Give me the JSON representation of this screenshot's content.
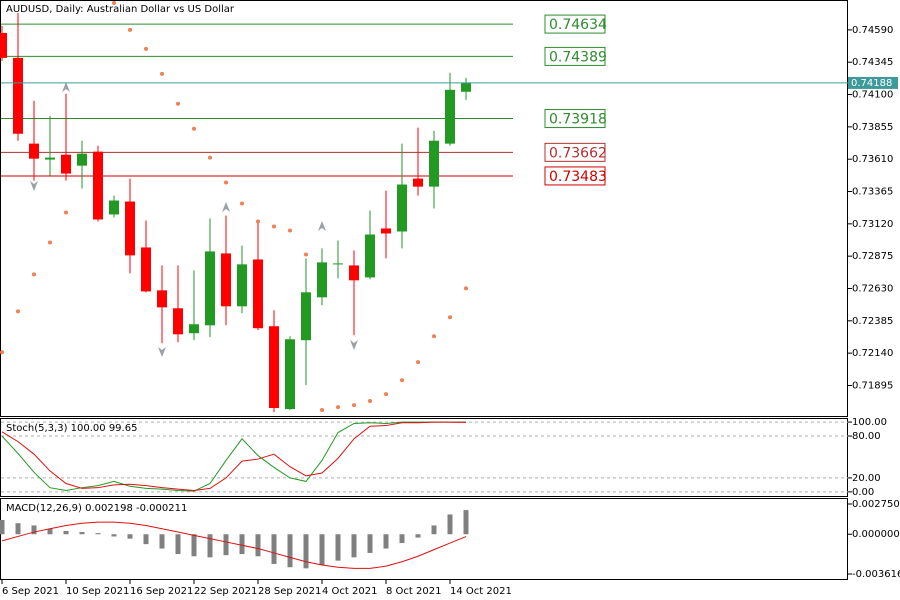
{
  "chart_data": [
    {
      "type": "candlestick",
      "title": "AUDUSD, Daily:  Australian Dollar vs US Dollar",
      "categories": [
        "6 Sep 2021",
        null,
        null,
        null,
        "10 Sep 2021",
        null,
        null,
        null,
        "16 Sep 2021",
        null,
        null,
        null,
        "22 Sep 2021",
        null,
        null,
        null,
        "28 Sep 2021",
        null,
        null,
        null,
        "4 Oct 2021",
        null,
        null,
        null,
        "8 Oct 2021",
        null,
        null,
        null,
        "14 Oct 2021",
        null
      ],
      "open": [
        0.74567,
        0.74378,
        0.73728,
        0.73607,
        0.73644,
        0.73561,
        0.73667,
        0.73191,
        0.73289,
        0.72941,
        0.72616,
        0.7248,
        0.72291,
        0.72351,
        0.72896,
        0.72495,
        0.7285,
        0.72344,
        0.71716,
        0.72238,
        0.72563,
        0.7282,
        0.72805,
        0.72714,
        0.73085,
        0.73062,
        0.73463,
        0.73402,
        0.73728,
        0.74121
      ],
      "high": [
        0.7462,
        0.74718,
        0.74053,
        0.73939,
        0.74106,
        0.7375,
        0.73712,
        0.73334,
        0.73463,
        0.73145,
        0.72805,
        0.72805,
        0.72767,
        0.73161,
        0.73183,
        0.72956,
        0.7313,
        0.72465,
        0.72268,
        0.72858,
        0.72934,
        0.72994,
        0.72919,
        0.73221,
        0.73372,
        0.73728,
        0.73849,
        0.73826,
        0.74265,
        0.74227
      ],
      "low": [
        0.74355,
        0.7375,
        0.73448,
        0.73486,
        0.73448,
        0.73387,
        0.73138,
        0.73168,
        0.72745,
        0.72601,
        0.72215,
        0.72223,
        0.72238,
        0.72261,
        0.72351,
        0.72442,
        0.72314,
        0.71693,
        0.71709,
        0.71898,
        0.72503,
        0.72707,
        0.72276,
        0.72699,
        0.72858,
        0.72934,
        0.73334,
        0.73236,
        0.73712,
        0.7406
      ],
      "close": [
        0.74378,
        0.73803,
        0.73614,
        0.73622,
        0.73501,
        0.73652,
        0.73153,
        0.73297,
        0.72881,
        0.72608,
        0.72487,
        0.72283,
        0.72359,
        0.72911,
        0.72495,
        0.72813,
        0.72329,
        0.71724,
        0.72245,
        0.72601,
        0.72828,
        0.7282,
        0.72692,
        0.73039,
        0.73047,
        0.73418,
        0.73402,
        0.7375,
        0.74136,
        0.74188
      ],
      "sar": [
        0.72147,
        0.72457,
        0.72737,
        0.72979,
        0.73206,
        null,
        null,
        0.74794,
        0.7459,
        0.74446,
        0.74257,
        0.7403,
        0.73841,
        0.73622,
        0.73433,
        0.73274,
        0.73138,
        0.731,
        0.7307,
        0.72888,
        0.71709,
        0.71731,
        0.71746,
        0.71777,
        0.71829,
        0.71935,
        0.72072,
        0.72268,
        0.72412,
        0.72631
      ],
      "levels": [
        0.74634,
        0.74389,
        0.73918,
        0.73662,
        0.73483
      ],
      "level_colors": [
        "#2e8b2e",
        "#2e8b2e",
        "#2e8b2e",
        "#b03030",
        "#cc0000"
      ],
      "up_color": "#229922",
      "down_color": "#ff0000",
      "sar_color": "#f08050",
      "price_line_color": "#3d9a9a",
      "ylim": [
        0.71656,
        0.74809
      ],
      "yticks": [
        {
          "value": 0.7459,
          "label": "0.74590"
        },
        {
          "value": 0.74345,
          "label": "0.74345"
        },
        {
          "value": 0.741,
          "label": "0.74100"
        },
        {
          "value": 0.73855,
          "label": "0.73855"
        },
        {
          "value": 0.7361,
          "label": "0.73610"
        },
        {
          "value": 0.73365,
          "label": "0.73365"
        },
        {
          "value": 0.7312,
          "label": "0.73120"
        },
        {
          "value": 0.72875,
          "label": "0.72875"
        },
        {
          "value": 0.7263,
          "label": "0.72630"
        },
        {
          "value": 0.72385,
          "label": "0.72385"
        },
        {
          "value": 0.7214,
          "label": "0.72140"
        },
        {
          "value": 0.71895,
          "label": "0.71895"
        }
      ]
    },
    {
      "type": "line",
      "title": "Stoch(5,3,3) 100.00 99.65",
      "series": [
        {
          "color": "#229922",
          "values": [
            80,
            55,
            28,
            6,
            2,
            6,
            9,
            15,
            8,
            5,
            4,
            2,
            1,
            12,
            45,
            76,
            52,
            35,
            20,
            15,
            45,
            85,
            98,
            99,
            98,
            100,
            100,
            100,
            100,
            100
          ]
        },
        {
          "color": "#dd1111",
          "values": [
            86,
            72,
            54,
            30,
            12,
            5,
            6,
            10,
            11,
            9,
            6,
            4,
            2,
            5,
            20,
            44,
            47,
            54,
            36,
            23,
            27,
            48,
            76,
            94,
            95,
            99,
            99,
            100,
            100,
            99.65
          ]
        }
      ],
      "ylim": [
        -7.35,
        104.4
      ],
      "yticks": [
        {
          "value": 100,
          "label": "100.00"
        },
        {
          "value": 80,
          "label": "80.00"
        },
        {
          "value": 20,
          "label": "20.00"
        },
        {
          "value": 0,
          "label": "0.00"
        }
      ],
      "grid_dash": true
    },
    {
      "type": "macd",
      "title": "MACD(12,26,9) 0.002198 -0.000211",
      "values": [
        0.0013,
        0.001,
        0.0008,
        0.0005,
        0.0003,
        0.0002,
        0.0001,
        -0.0002,
        -0.0004,
        -0.0009,
        -0.0013,
        -0.0018,
        -0.002,
        -0.0021,
        -0.0019,
        -0.0018,
        -0.002,
        -0.0027,
        -0.003,
        -0.0031,
        -0.0028,
        -0.0024,
        -0.0021,
        -0.0017,
        -0.0013,
        -0.0008,
        -0.0003,
        0.0008,
        0.0018,
        0.002198
      ],
      "signal": [
        -0.0006,
        -0.0002,
        0.0002,
        0.0005,
        0.0008,
        0.001,
        0.0011,
        0.0011,
        0.001,
        0.0008,
        0.0005,
        0.0002,
        -0.0001,
        -0.0004,
        -0.0007,
        -0.001,
        -0.0013,
        -0.0017,
        -0.0021,
        -0.0025,
        -0.0028,
        -0.003,
        -0.0031,
        -0.0031,
        -0.0029,
        -0.0025,
        -0.002,
        -0.0014,
        -0.0008,
        -0.000211
      ],
      "color": "#808080",
      "signal_color": "#dd1111",
      "ylim": [
        -0.00416,
        0.003205
      ],
      "yticks": [
        {
          "value": 0.00275,
          "label": "0.002750"
        },
        {
          "value": 0,
          "label": "0.000000"
        },
        {
          "value": -0.003616,
          "label": "-0.003616"
        }
      ]
    }
  ]
}
